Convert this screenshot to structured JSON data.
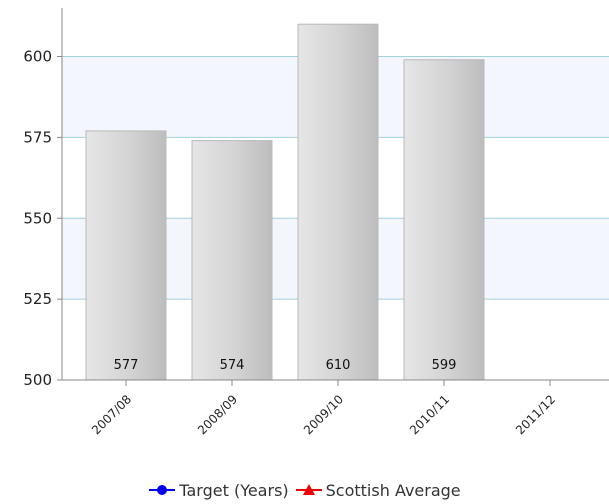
{
  "chart_data": {
    "type": "bar",
    "categories": [
      "2007/08",
      "2008/09",
      "2009/10",
      "2010/11",
      "2011/12"
    ],
    "series": [
      {
        "values": [
          577,
          574,
          610,
          599,
          null
        ]
      }
    ],
    "data_labels": [
      "577",
      "574",
      "610",
      "599",
      ""
    ],
    "ylim": [
      500,
      615
    ],
    "yticks": [
      500,
      525,
      550,
      575,
      600
    ],
    "grid": "horizontal",
    "legend_placement": "bottom",
    "legend": [
      {
        "label": "Target (Years)",
        "color": "#0000ee",
        "marker": "circle"
      },
      {
        "label": "Scottish Average",
        "color": "#ee0000",
        "marker": "triangle"
      }
    ],
    "bar_color": "#d4d4d4",
    "gridline_color": "#9fd2dc",
    "band_color": "#f3f6fc"
  }
}
